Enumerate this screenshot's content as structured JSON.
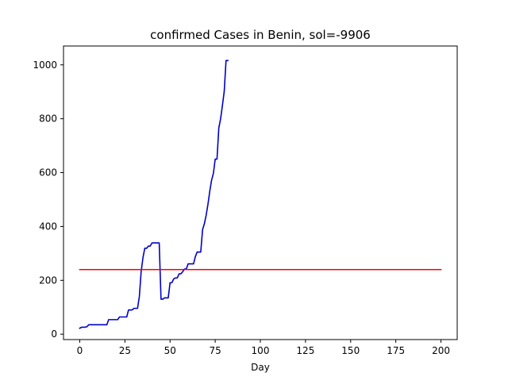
{
  "chart_data": {
    "type": "line",
    "title": "confirmed Cases in Benin, sol=-9906",
    "xlabel": "Day",
    "ylabel": "",
    "xlim": [
      -9,
      209
    ],
    "ylim": [
      -20,
      1070
    ],
    "xticks": [
      0,
      25,
      50,
      75,
      100,
      125,
      150,
      175,
      200
    ],
    "yticks": [
      0,
      200,
      400,
      600,
      800,
      1000
    ],
    "grid": false,
    "legend": "none",
    "series": [
      {
        "color": "#0000cc",
        "x": [
          0,
          1,
          2,
          3,
          4,
          5,
          6,
          7,
          8,
          9,
          10,
          11,
          12,
          13,
          14,
          15,
          16,
          17,
          18,
          19,
          20,
          21,
          22,
          23,
          24,
          25,
          26,
          27,
          28,
          29,
          30,
          31,
          32,
          33,
          34,
          35,
          36,
          37,
          38,
          39,
          40,
          41,
          42,
          43,
          44,
          45,
          46,
          47,
          48,
          49,
          50,
          51,
          52,
          53,
          54,
          55,
          56,
          57,
          58,
          59,
          60,
          61,
          62,
          63,
          64,
          65,
          66,
          67,
          68,
          69,
          70,
          71,
          72,
          73,
          74,
          75,
          76,
          77,
          78,
          79,
          80,
          81,
          82
        ],
        "y": [
          22,
          26,
          26,
          26,
          28,
          35,
          35,
          35,
          35,
          35,
          35,
          35,
          35,
          35,
          35,
          35,
          54,
          54,
          54,
          54,
          54,
          54,
          64,
          64,
          64,
          64,
          64,
          90,
          90,
          90,
          96,
          96,
          96,
          140,
          232,
          284,
          319,
          319,
          327,
          327,
          339,
          339,
          339,
          339,
          339,
          130,
          130,
          135,
          135,
          135,
          191,
          191,
          205,
          209,
          209,
          224,
          224,
          232,
          242,
          242,
          261,
          261,
          261,
          261,
          288,
          305,
          305,
          305,
          388,
          410,
          442,
          483,
          531,
          572,
          597,
          650,
          650,
          766,
          800,
          849,
          902,
          1016,
          1016
        ]
      },
      {
        "color": "#ff0000",
        "x": [
          0,
          200
        ],
        "y": [
          240,
          240
        ]
      }
    ]
  }
}
